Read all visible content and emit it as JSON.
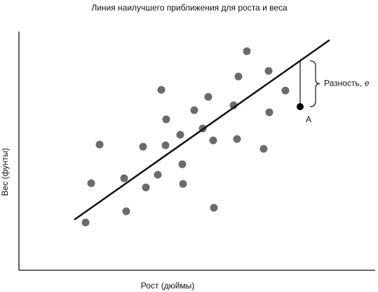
{
  "chart_data": {
    "type": "scatter",
    "title": "Линия наилучшего приближения для роста и веса",
    "xlabel": "Рост (дюймы)",
    "ylabel": "Вес (фунты)",
    "xlim": [
      0,
      508
    ],
    "ylim": [
      0,
      340
    ],
    "color": "#6b6b6b",
    "x": [
      95,
      103,
      115,
      153,
      150,
      181,
      177,
      198,
      209,
      210,
      203,
      234,
      233,
      230,
      250,
      262,
      270,
      278,
      277,
      306,
      311,
      313,
      325,
      349,
      356,
      357,
      380
    ],
    "y": [
      68,
      124,
      179,
      84,
      131,
      118,
      176,
      136,
      178,
      215,
      257,
      123,
      151,
      193,
      228,
      202,
      247,
      89,
      185,
      235,
      187,
      276,
      312,
      173,
      284,
      225,
      256
    ],
    "fit_line": {
      "x": [
        79,
        443
      ],
      "y": [
        72,
        328
      ],
      "color": "#111111"
    },
    "highlight": {
      "label": "A",
      "x": 401,
      "y": 233,
      "color": "#000000"
    },
    "residual_label": "Разность,",
    "residual_symbol": "e"
  }
}
